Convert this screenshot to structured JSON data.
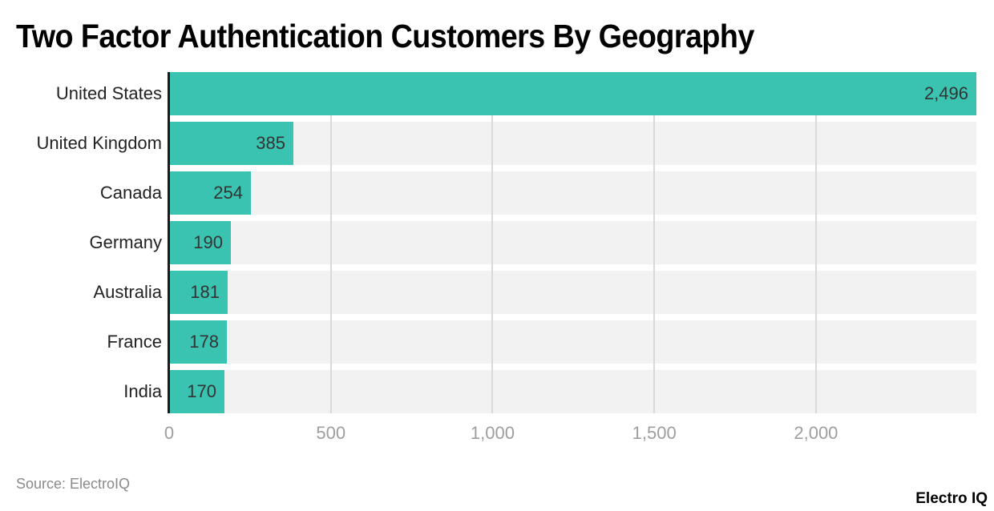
{
  "title": "Two Factor Authentication Customers By Geography",
  "source": "Source: ElectroIQ",
  "brand": "Electro IQ",
  "colors": {
    "bar": "#3bc3b1",
    "row_bg": "#f2f2f2",
    "grid": "#d9d9d9",
    "axis": "#1a1a1a"
  },
  "chart_data": {
    "type": "bar",
    "orientation": "horizontal",
    "title": "Two Factor Authentication Customers By Geography",
    "categories": [
      "United States",
      "United Kingdom",
      "Canada",
      "Germany",
      "Australia",
      "France",
      "India"
    ],
    "values": [
      2496,
      385,
      254,
      190,
      181,
      178,
      170
    ],
    "value_labels": [
      "2,496",
      "385",
      "254",
      "190",
      "181",
      "178",
      "170"
    ],
    "xlabel": "",
    "ylabel": "",
    "xlim": [
      0,
      2496
    ],
    "x_ticks": [
      0,
      500,
      1000,
      1500,
      2000
    ],
    "x_tick_labels": [
      "0",
      "500",
      "1,000",
      "1,500",
      "2,000"
    ],
    "grid": true,
    "legend": "none"
  }
}
